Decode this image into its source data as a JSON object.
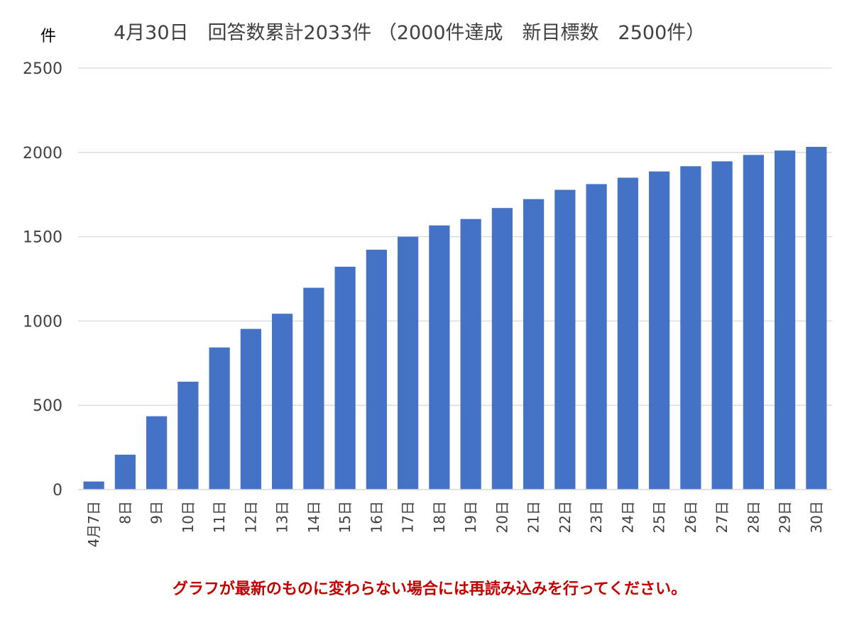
{
  "chart_data": {
    "type": "bar",
    "title": "4月30日　回答数累計2033件 （2000件達成　新目標数　2500件）",
    "ylabel": "件",
    "xlabel": "",
    "categories": [
      "4月7日",
      "8日",
      "9日",
      "10日",
      "11日",
      "12日",
      "13日",
      "14日",
      "15日",
      "16日",
      "17日",
      "18日",
      "19日",
      "20日",
      "21日",
      "22日",
      "23日",
      "24日",
      "25日",
      "26日",
      "27日",
      "28日",
      "29日",
      "30日"
    ],
    "values": [
      48,
      207,
      435,
      640,
      843,
      953,
      1043,
      1197,
      1322,
      1423,
      1500,
      1567,
      1605,
      1670,
      1723,
      1778,
      1812,
      1850,
      1887,
      1918,
      1947,
      1985,
      2011,
      2033
    ],
    "ylim": [
      0,
      2500
    ],
    "yticks": [
      0,
      500,
      1000,
      1500,
      2000,
      2500
    ],
    "grid": true,
    "legend": "none",
    "bar_color": "#4472c4",
    "grid_color": "#d9d9d9"
  },
  "note": "グラフが最新のものに変わらない場合には再読み込みを行ってください。",
  "colors": {
    "note": "#c00000",
    "text": "#404040"
  }
}
